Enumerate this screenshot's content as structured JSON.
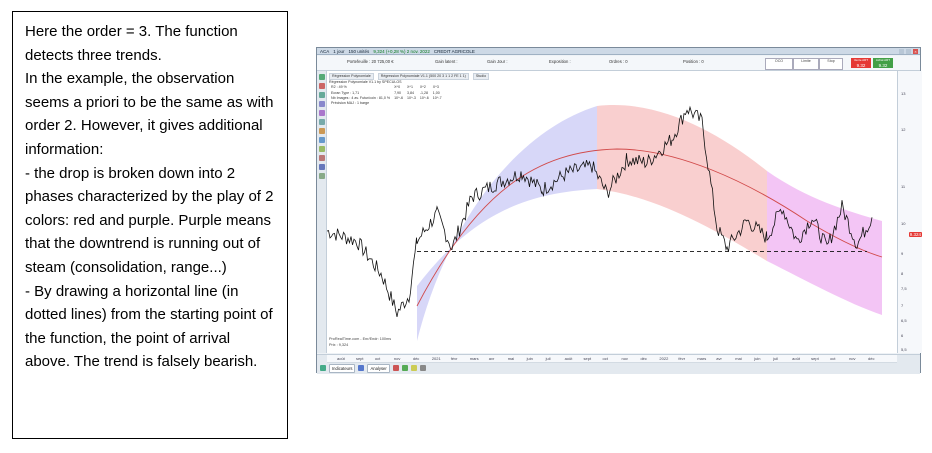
{
  "note": {
    "lines": [
      "Here the order = 3. The function detects three trends.",
      "In the example, the  observation seems a priori to be the same as with order 2. However, it gives additional information:",
      "-  the drop is broken down into 2 phases characterized by the play of 2 colors: red and purple. Purple means that the downtrend is running out of steam (consolidation, range...)",
      "- By drawing a horizontal line (in dotted lines) from the starting point of the function, the point of arrival above. The trend is falsely bearish."
    ]
  },
  "app": {
    "topbar": {
      "symbol": "ACA",
      "period": "1 jour",
      "units": "150 unités",
      "quote": "9,324 (+0,28 %) 2 nov. 2022",
      "instrument": "CREDIT AGRICOLE"
    },
    "orderbar": {
      "portfolio": "Portefeuille : 20 725,00 €",
      "gain_latent": "Gain latent :",
      "gain_jour": "Gain Jour :",
      "exposition": "Exposition :",
      "ordres": "Ordres : 0",
      "position": "Position : 0",
      "oco": "OCO",
      "limite": "Limite",
      "stop": "Stop",
      "sell_label": "Vente ART",
      "sell_price": "9.32",
      "buy_label": "Achat ART",
      "buy_price": "9.32"
    },
    "legend": {
      "tab": "Régression Polynomiale",
      "indicator": "Régression Polynomiale V1.1 (500 20 3 1 1 2 FE 1 1)",
      "studio": "Studio",
      "title": "Régression Polynomiale V1.1 by SPECULOS",
      "rows": [
        [
          "R2 : 49 %",
          "X^0",
          "X^1",
          "X^2",
          "X^3"
        ],
        [
          "Ecran Type : 1,71",
          "7,90",
          "3,84",
          "-1,28",
          "1,00"
        ],
        [
          "Nb Images : 4 av. Futur/coin : 81,0 %",
          "10^-6",
          "10^-3",
          "10^-6",
          "10^-7"
        ],
        [
          "Précision MAJ : 1 barge",
          "",
          "",
          "",
          ""
        ]
      ]
    },
    "chart_data": {
      "type": "line",
      "x_labels": [
        "août",
        "sept",
        "oct",
        "nov",
        "déc",
        "2021",
        "févr",
        "mars",
        "avr",
        "mai",
        "juin",
        "juil",
        "août",
        "sept",
        "oct",
        "nov",
        "déc",
        "2022",
        "févr",
        "mars",
        "avr",
        "mai",
        "juin",
        "juil",
        "août",
        "sept",
        "oct",
        "nov",
        "déc"
      ],
      "y_ticks": [
        "13",
        "12",
        "11",
        "10",
        "9",
        "8",
        "7,5",
        "7",
        "6,5",
        "6",
        "5,5"
      ],
      "current_price": "9.324",
      "support_level": 8.3,
      "markers": [
        "100",
        "200",
        "300",
        "400",
        "500",
        "100",
        "200"
      ]
    },
    "bottom": {
      "footer_text": "ProRealTime.com - Enr/Endr: 100ms",
      "price_footer": "Prix : 9,324",
      "indicators_btn": "Indicateurs",
      "analysis_btn": "Analyser",
      "pages": [
        "1",
        "2",
        "3",
        "4"
      ]
    }
  }
}
